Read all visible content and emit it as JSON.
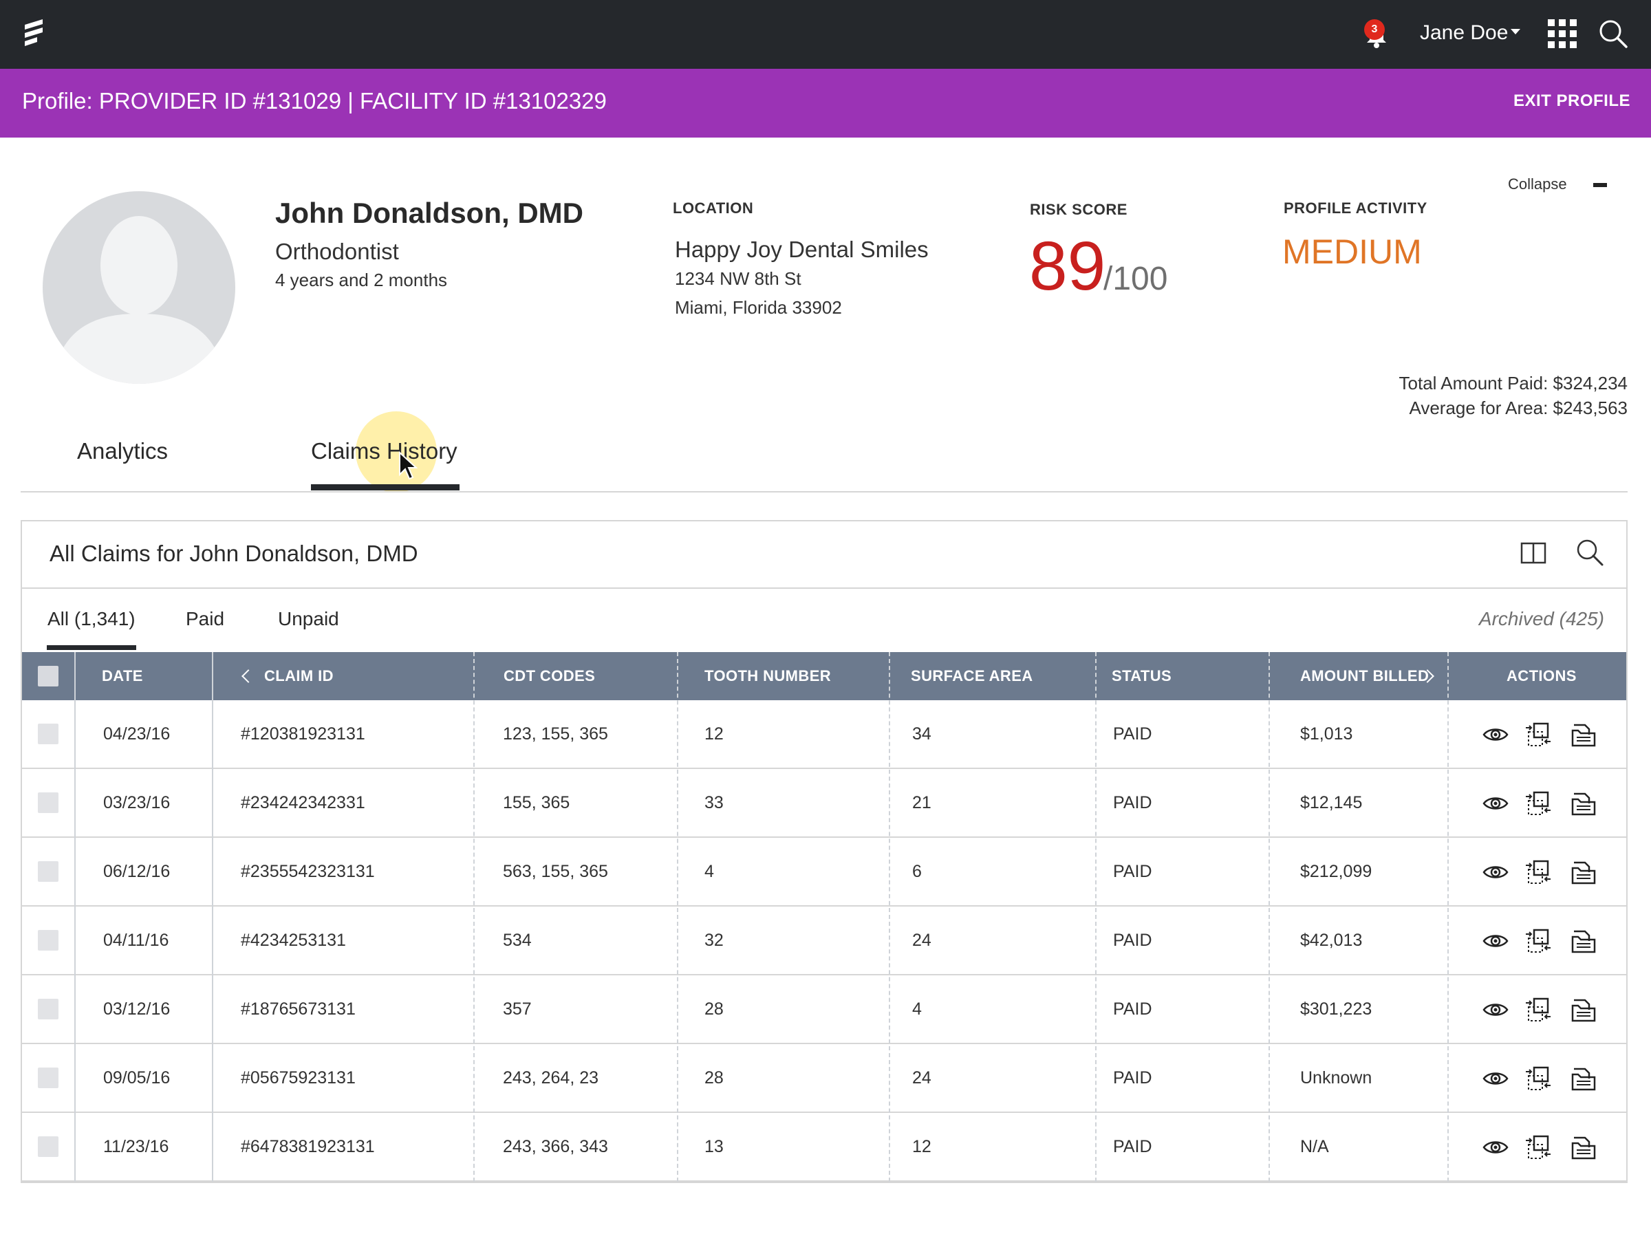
{
  "topbar": {
    "notification_count": "3",
    "user_name": "Jane Doe",
    "icons": [
      "logo-icon",
      "bell-icon",
      "chevron-down-icon",
      "apps-grid-icon",
      "search-icon"
    ]
  },
  "banner": {
    "title": "Profile: PROVIDER ID #131029 | FACILITY ID #13102329",
    "exit_label": "EXIT PROFILE"
  },
  "profile": {
    "name": "John Donaldson, DMD",
    "specialty": "Orthodontist",
    "tenure": "4 years and 2 months",
    "location_label": "LOCATION",
    "location_name": "Happy Joy Dental Smiles",
    "address_line1": "1234 NW 8th St",
    "address_line2": "Miami, Florida 33902",
    "risk_label": "RISK SCORE",
    "risk_value": "89",
    "risk_max": "/100",
    "activity_label": "PROFILE ACTIVITY",
    "activity_value": "MEDIUM",
    "collapse_label": "Collapse",
    "total_paid": "Total Amount Paid: $324,234",
    "average_area": "Average for Area: $243,563"
  },
  "colors": {
    "topbar": "#25282c",
    "banner": "#9b33b5",
    "risk": "#c8201e",
    "activity": "#e07526",
    "table_header": "#6c7a8e"
  },
  "tabs": [
    {
      "label": "Analytics",
      "active": false
    },
    {
      "label": "Claims History",
      "active": true
    }
  ],
  "claims": {
    "title": "All Claims for John Donaldson, DMD",
    "subtabs": [
      {
        "label": "All (1,341)",
        "active": true
      },
      {
        "label": "Paid",
        "active": false
      },
      {
        "label": "Unpaid",
        "active": false
      }
    ],
    "archived": "Archived (425)",
    "columns": [
      "DATE",
      "CLAIM ID",
      "CDT CODES",
      "TOOTH NUMBER",
      "SURFACE AREA",
      "STATUS",
      "AMOUNT BILLED",
      "ACTIONS"
    ],
    "rows": [
      {
        "date": "04/23/16",
        "claim_id": "#120381923131",
        "cdt": "123, 155, 365",
        "tooth": "12",
        "surface": "34",
        "status": "PAID",
        "amount": "$1,013"
      },
      {
        "date": "03/23/16",
        "claim_id": "#234242342331",
        "cdt": "155, 365",
        "tooth": "33",
        "surface": "21",
        "status": "PAID",
        "amount": "$12,145"
      },
      {
        "date": "06/12/16",
        "claim_id": "#2355542323131",
        "cdt": "563, 155, 365",
        "tooth": "4",
        "surface": "6",
        "status": "PAID",
        "amount": "$212,099"
      },
      {
        "date": "04/11/16",
        "claim_id": "#4234253131",
        "cdt": "534",
        "tooth": "32",
        "surface": "24",
        "status": "PAID",
        "amount": "$42,013"
      },
      {
        "date": "03/12/16",
        "claim_id": "#18765673131",
        "cdt": "357",
        "tooth": "28",
        "surface": "4",
        "status": "PAID",
        "amount": "$301,223"
      },
      {
        "date": "09/05/16",
        "claim_id": "#05675923131",
        "cdt": "243, 264, 23",
        "tooth": "28",
        "surface": "24",
        "status": "PAID",
        "amount": "Unknown"
      },
      {
        "date": "11/23/16",
        "claim_id": "#6478381923131",
        "cdt": "243, 366, 343",
        "tooth": "13",
        "surface": "12",
        "status": "PAID",
        "amount": "N/A"
      }
    ],
    "row_action_icons": [
      "eye-icon",
      "compare-icon",
      "folder-icon"
    ]
  }
}
